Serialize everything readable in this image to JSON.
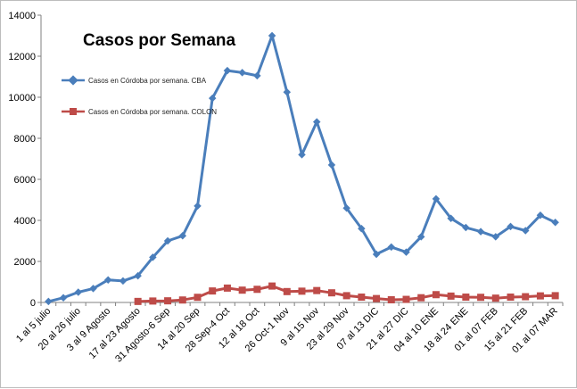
{
  "chart_data": {
    "type": "line",
    "title": "Casos por Semana",
    "xlabel": "",
    "ylabel": "",
    "ylim": [
      0,
      14000
    ],
    "yticks": [
      0,
      2000,
      4000,
      6000,
      8000,
      10000,
      12000,
      14000
    ],
    "grid": false,
    "legend_position": "top-left",
    "x_labels": [
      "1 al 5 julio",
      "20 al 26 julio",
      "3 al 9 Agosto",
      "17 al 23 Agosto",
      "31 Agosto-6 Sep",
      "14 al 20 Sep",
      "28 Sep-4 Oct",
      "12 al 18 Oct",
      "26 Oct-1 Nov",
      "9 al 15 Nov",
      "23 al 29 Nov",
      "07 al 13 DIC",
      "21 al 27 DIC",
      "04 al 10 ENE",
      "18 al 24 ENE",
      "01 al 07 FEB",
      "15 al 21 FEB",
      "01 al 07 MAR"
    ],
    "label_every": 2,
    "series": [
      {
        "name": "Casos en Córdoba por semana. CBA",
        "color": "#4a7ebb",
        "marker": "diamond",
        "values": [
          50,
          230,
          500,
          680,
          1100,
          1050,
          1300,
          2200,
          3000,
          3250,
          4700,
          9950,
          11300,
          11200,
          11050,
          13000,
          10250,
          7200,
          8800,
          6700,
          4600,
          3600,
          2350,
          2700,
          2450,
          3200,
          5050,
          4100,
          3650,
          3450,
          3200,
          3700,
          3500,
          4250,
          3900
        ]
      },
      {
        "name": "Casos en Córdoba por semana. COLON",
        "color": "#be4b48",
        "marker": "square",
        "values": [
          null,
          null,
          null,
          null,
          null,
          null,
          50,
          70,
          80,
          120,
          250,
          560,
          700,
          600,
          640,
          800,
          530,
          550,
          580,
          470,
          330,
          260,
          190,
          130,
          150,
          230,
          380,
          310,
          260,
          250,
          210,
          260,
          280,
          320,
          330
        ]
      }
    ]
  }
}
